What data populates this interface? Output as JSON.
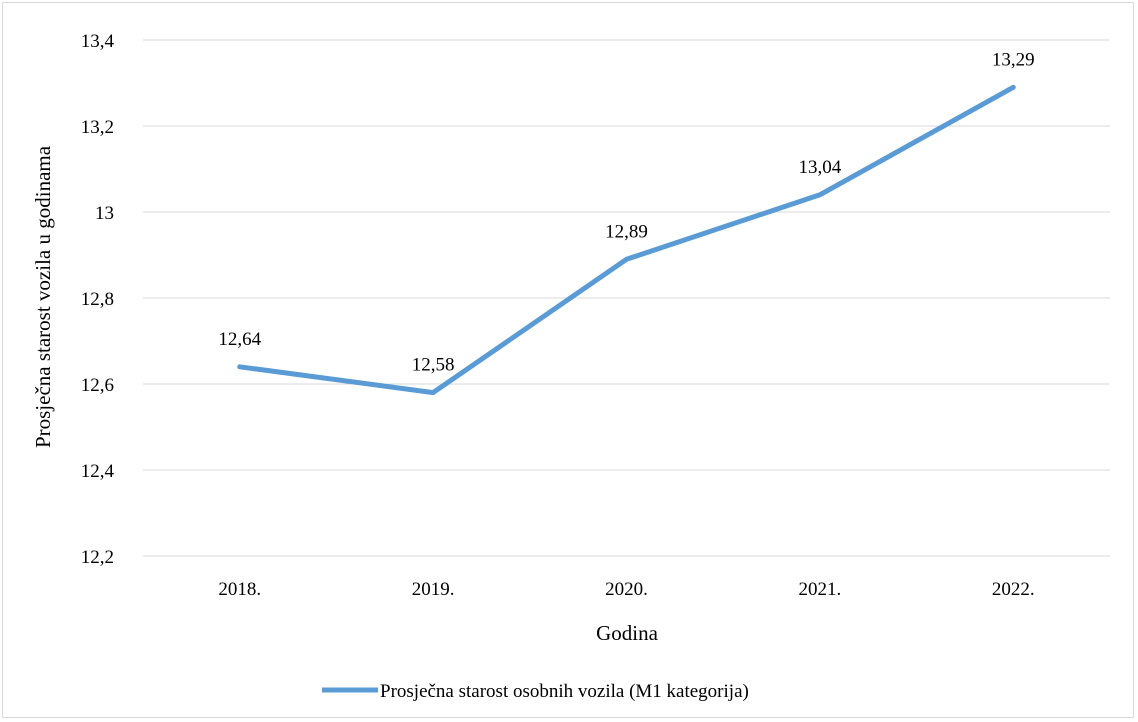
{
  "chart_data": {
    "type": "line",
    "categories": [
      "2018.",
      "2019.",
      "2020.",
      "2021.",
      "2022."
    ],
    "series": [
      {
        "name": "Prosječna starost osobnih vozila (M1 kategorija)",
        "values": [
          12.64,
          12.58,
          12.89,
          13.04,
          13.29
        ],
        "labels": [
          "12,64",
          "12,58",
          "12,89",
          "13,04",
          "13,29"
        ],
        "color": "#5b9bd5"
      }
    ],
    "xlabel": "Godina",
    "ylabel": "Prosječna starost vozila u godinama",
    "ylim": [
      12.2,
      13.4
    ],
    "yticks": [
      12.2,
      12.4,
      12.6,
      12.8,
      13.0,
      13.2,
      13.4
    ],
    "ytick_labels": [
      "12,2",
      "12,4",
      "12,6",
      "12,8",
      "13",
      "13,2",
      "13,4"
    ],
    "grid": true,
    "legend_position": "bottom"
  }
}
